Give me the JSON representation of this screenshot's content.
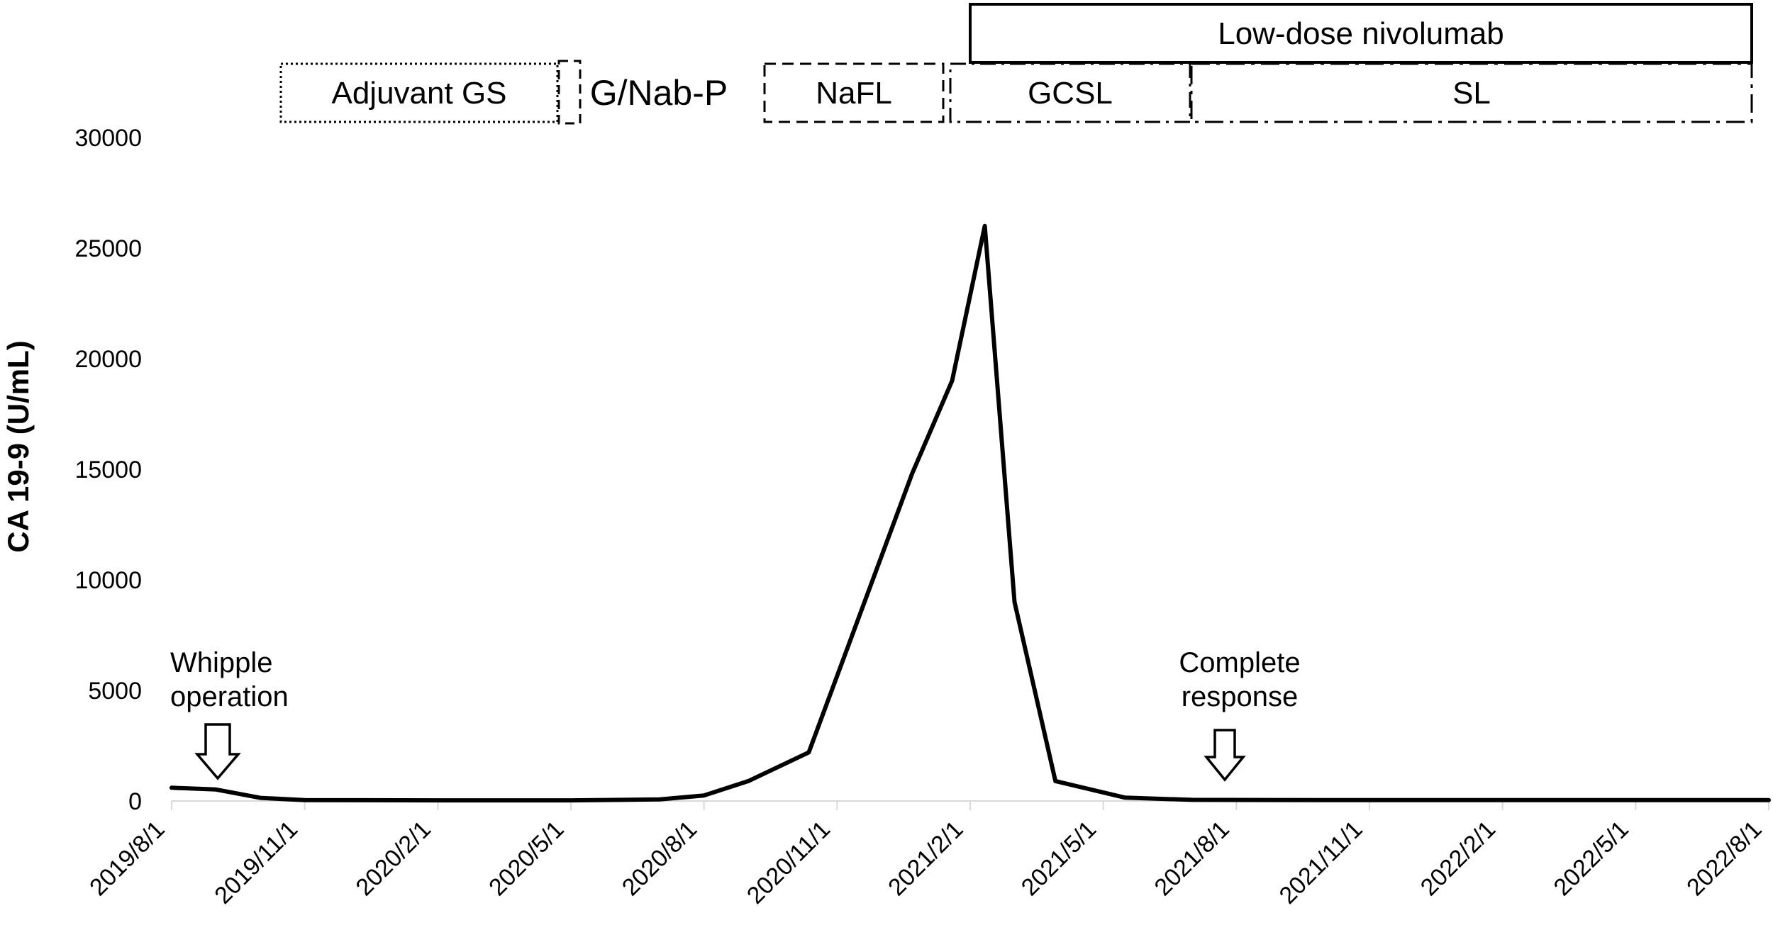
{
  "chart_data": {
    "type": "line",
    "title": "",
    "xlabel": "",
    "ylabel": "CA 19-9 (U/mL)",
    "ylim": [
      0,
      30000
    ],
    "yticks": [
      0,
      5000,
      10000,
      15000,
      20000,
      25000,
      30000
    ],
    "x_tick_labels": [
      "2019/8/1",
      "2019/11/1",
      "2020/2/1",
      "2020/5/1",
      "2020/8/1",
      "2020/11/1",
      "2021/2/1",
      "2021/5/1",
      "2021/8/1",
      "2021/11/1",
      "2022/2/1",
      "2022/5/1",
      "2022/8/1"
    ],
    "grid": false,
    "legend": false,
    "line_color": "#000000",
    "axis_color": "#d9d9d9",
    "series": [
      {
        "name": "CA 19-9",
        "points": [
          [
            "2019/8/1",
            600
          ],
          [
            "2019/9/1",
            520
          ],
          [
            "2019/10/1",
            140
          ],
          [
            "2019/11/1",
            40
          ],
          [
            "2020/2/1",
            30
          ],
          [
            "2020/5/1",
            30
          ],
          [
            "2020/7/1",
            70
          ],
          [
            "2020/8/1",
            250
          ],
          [
            "2020/9/1",
            900
          ],
          [
            "2020/10/12",
            2200
          ],
          [
            "2020/12/22",
            14800
          ],
          [
            "2021/1/19",
            19000
          ],
          [
            "2021/2/11",
            26000
          ],
          [
            "2021/3/1",
            9000
          ],
          [
            "2021/3/29",
            900
          ],
          [
            "2021/5/16",
            150
          ],
          [
            "2021/7/1",
            50
          ],
          [
            "2021/10/1",
            40
          ],
          [
            "2022/1/1",
            40
          ],
          [
            "2022/4/1",
            40
          ],
          [
            "2022/8/1",
            40
          ]
        ]
      }
    ],
    "annotations": [
      {
        "id": "whipple",
        "text_line1": "Whipple",
        "text_line2": "operation",
        "arrow": "down",
        "target_date": "2019/9/1"
      },
      {
        "id": "complete-response",
        "text_line1": "Complete",
        "text_line2": "response",
        "arrow": "down",
        "target_date": "2021/7/25"
      }
    ],
    "treatment_periods": [
      {
        "label": "Adjuvant GS",
        "border": "dotted",
        "start": "2019/10",
        "end": "2020/4"
      },
      {
        "label": "",
        "border": "dashed",
        "start": "2020/4",
        "end": "2020/5"
      },
      {
        "label": "G/Nab-P",
        "border": "none",
        "start": "2020/5",
        "end": "2020/8"
      },
      {
        "label": "NaFL",
        "border": "dashed",
        "start": "2020/9",
        "end": "2021/1"
      },
      {
        "label": "GCSL",
        "border": "dash-dot",
        "start": "2021/1",
        "end": "2021/7"
      },
      {
        "label": "SL",
        "border": "dash-dot",
        "start": "2021/7",
        "end": "2022/7"
      },
      {
        "label": "Low-dose nivolumab",
        "border": "solid",
        "start": "2021/2",
        "end": "2022/7"
      }
    ]
  }
}
